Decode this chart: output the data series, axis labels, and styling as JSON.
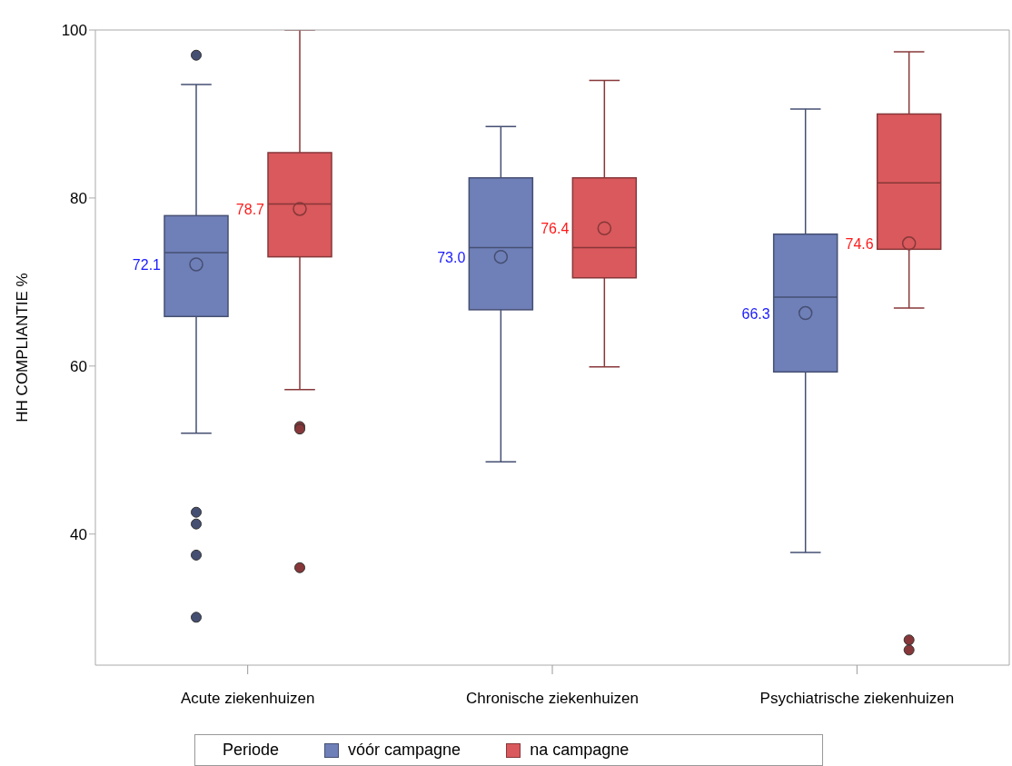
{
  "chart_data": {
    "type": "box",
    "categories": [
      "Acute ziekenhuizen",
      "Chronische ziekenhuizen",
      "Psychiatrische ziekenhuizen"
    ],
    "ylabel": "HH COMPLIANTIE %",
    "ylim": [
      24.4,
      100
    ],
    "yticks": [
      40,
      60,
      80,
      100
    ],
    "legend": "bottom",
    "legend_title": "Periode",
    "series": [
      {
        "name": "vóór campagne",
        "color": "#6f7fb8",
        "value_labels": [
          "72.1",
          "73.0",
          "66.3"
        ],
        "boxes": [
          {
            "low": 52.0,
            "q1": 65.9,
            "median": 73.5,
            "q3": 77.9,
            "high": 93.5,
            "mean": 72.1,
            "outliers": [
              97.0,
              42.6,
              41.2,
              37.5,
              30.1
            ]
          },
          {
            "low": 48.6,
            "q1": 66.7,
            "median": 74.1,
            "q3": 82.4,
            "high": 88.5,
            "mean": 73.0
          },
          {
            "low": 37.8,
            "q1": 59.3,
            "median": 68.2,
            "q3": 75.7,
            "high": 90.6,
            "mean": 66.3
          }
        ]
      },
      {
        "name": "na campagne",
        "color": "#d9595c",
        "value_labels": [
          "78.7",
          "76.4",
          "74.6"
        ],
        "boxes": [
          {
            "low": 57.2,
            "q1": 73.0,
            "median": 79.3,
            "q3": 85.4,
            "high": 100,
            "mean": 78.7,
            "outliers": [
              52.8,
              52.5,
              36.0
            ]
          },
          {
            "low": 59.9,
            "q1": 70.5,
            "median": 74.1,
            "q3": 82.4,
            "high": 94.0,
            "mean": 76.4
          },
          {
            "low": 66.9,
            "q1": 73.9,
            "median": 81.8,
            "q3": 90.0,
            "high": 97.4,
            "mean": 74.6,
            "outliers": [
              27.4,
              26.2
            ]
          }
        ]
      }
    ]
  }
}
